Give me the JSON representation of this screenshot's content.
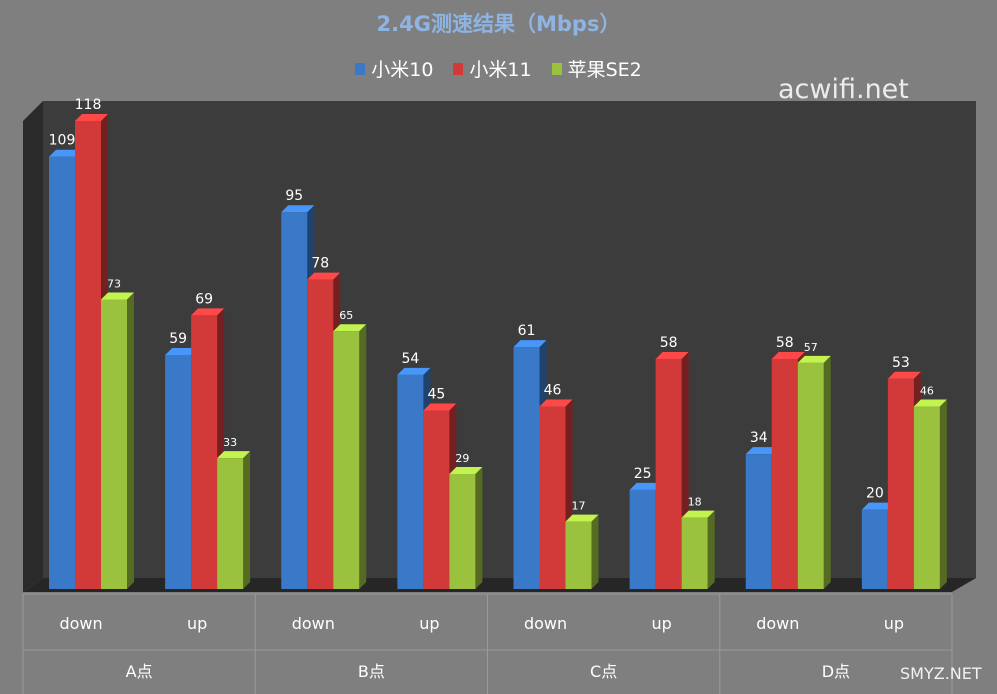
{
  "chart_data": {
    "type": "bar",
    "title": "2.4G测速结果（Mbps）",
    "groups": [
      "A点",
      "B点",
      "C点",
      "D点"
    ],
    "categories": [
      "down",
      "up",
      "down",
      "up",
      "down",
      "up",
      "down",
      "up"
    ],
    "series": [
      {
        "name": "小米10",
        "color": "#3a78c8",
        "values": [
          109,
          59,
          95,
          54,
          61,
          25,
          34,
          20
        ]
      },
      {
        "name": "小米11",
        "color": "#d23a3a",
        "values": [
          118,
          69,
          78,
          45,
          46,
          58,
          58,
          53
        ]
      },
      {
        "name": "苹果SE2",
        "color": "#9bc23e",
        "values": [
          73,
          33,
          65,
          29,
          17,
          18,
          57,
          46
        ]
      }
    ],
    "ylim": [
      0,
      130
    ],
    "legend_position": "top",
    "grid": false
  },
  "watermarks": {
    "primary": "acwifi.net",
    "secondary": "SMYZ.NET"
  },
  "colors": {
    "background": "#7f7f7f",
    "plot_area": "#3a3a3a",
    "title": "#8eb4e3"
  }
}
